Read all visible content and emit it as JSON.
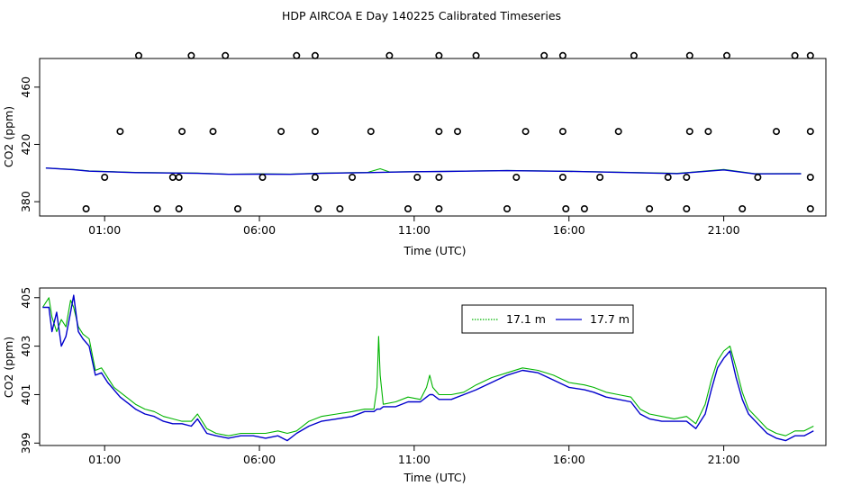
{
  "title": "HDP AIRCOA E  Day 140225  Calibrated Timeseries",
  "colors": {
    "series_a": "#00b400",
    "series_b": "#0000cc",
    "axis": "#000000"
  },
  "chart_data": [
    {
      "type": "line",
      "panel": "top",
      "xlabel": "Time (UTC)",
      "ylabel": "CO2 (ppm)",
      "x_unit": "hours UTC",
      "xlim": [
        -1.1,
        24.3
      ],
      "ylim": [
        370,
        480
      ],
      "xticks": [
        {
          "v": 1,
          "label": "01:00"
        },
        {
          "v": 6,
          "label": "06:00"
        },
        {
          "v": 11,
          "label": "11:00"
        },
        {
          "v": 16,
          "label": "16:00"
        },
        {
          "v": 21,
          "label": "21:00"
        }
      ],
      "yticks": [
        {
          "v": 380,
          "label": "380"
        },
        {
          "v": 420,
          "label": "420"
        },
        {
          "v": 460,
          "label": "460"
        }
      ],
      "series": [
        {
          "color": "#00b400",
          "x": [
            -0.9,
            0,
            0.5,
            2,
            4,
            5,
            6,
            7,
            8,
            9.5,
            9.9,
            10.2,
            11,
            12,
            14,
            16,
            18,
            19.5,
            21,
            22,
            23.5
          ],
          "y": [
            403.5,
            402.5,
            401.5,
            400.5,
            400,
            399.2,
            399.4,
            399.3,
            400,
            400.5,
            403,
            400.8,
            401,
            401.2,
            401.8,
            401.3,
            400.5,
            399.8,
            402.5,
            399.6,
            399.7
          ]
        },
        {
          "color": "#0000cc",
          "x": [
            -0.9,
            0,
            0.5,
            2,
            4,
            5,
            6,
            7,
            8,
            9.5,
            10.2,
            11,
            12,
            14,
            16,
            18,
            19.5,
            21,
            22,
            23.5
          ],
          "y": [
            403.5,
            402.3,
            401.3,
            400.3,
            399.8,
            399.1,
            399.2,
            399.1,
            399.8,
            400.3,
            400.6,
            400.9,
            401.1,
            401.7,
            401.2,
            400.3,
            399.6,
            402.2,
            399.4,
            399.5
          ]
        }
      ],
      "markers": {
        "type": "scatter",
        "symbol": "open-circle",
        "y_levels": [
          375,
          397,
          429,
          482
        ],
        "points": [
          {
            "x": 0.4,
            "y": 375
          },
          {
            "x": 2.7,
            "y": 375
          },
          {
            "x": 3.4,
            "y": 375
          },
          {
            "x": 5.3,
            "y": 375
          },
          {
            "x": 7.9,
            "y": 375
          },
          {
            "x": 8.6,
            "y": 375
          },
          {
            "x": 10.8,
            "y": 375
          },
          {
            "x": 11.8,
            "y": 375
          },
          {
            "x": 14.0,
            "y": 375
          },
          {
            "x": 15.9,
            "y": 375
          },
          {
            "x": 16.5,
            "y": 375
          },
          {
            "x": 18.6,
            "y": 375
          },
          {
            "x": 19.8,
            "y": 375
          },
          {
            "x": 21.6,
            "y": 375
          },
          {
            "x": 23.8,
            "y": 375
          },
          {
            "x": 1.0,
            "y": 397
          },
          {
            "x": 3.2,
            "y": 397
          },
          {
            "x": 3.4,
            "y": 397
          },
          {
            "x": 6.1,
            "y": 397
          },
          {
            "x": 7.8,
            "y": 397
          },
          {
            "x": 9.0,
            "y": 397
          },
          {
            "x": 11.1,
            "y": 397
          },
          {
            "x": 11.8,
            "y": 397
          },
          {
            "x": 14.3,
            "y": 397
          },
          {
            "x": 15.8,
            "y": 397
          },
          {
            "x": 17.0,
            "y": 397
          },
          {
            "x": 19.2,
            "y": 397
          },
          {
            "x": 19.8,
            "y": 397
          },
          {
            "x": 22.1,
            "y": 397
          },
          {
            "x": 23.8,
            "y": 397
          },
          {
            "x": 1.5,
            "y": 429
          },
          {
            "x": 3.5,
            "y": 429
          },
          {
            "x": 4.5,
            "y": 429
          },
          {
            "x": 6.7,
            "y": 429
          },
          {
            "x": 7.8,
            "y": 429
          },
          {
            "x": 9.6,
            "y": 429
          },
          {
            "x": 11.8,
            "y": 429
          },
          {
            "x": 12.4,
            "y": 429
          },
          {
            "x": 14.6,
            "y": 429
          },
          {
            "x": 15.8,
            "y": 429
          },
          {
            "x": 17.6,
            "y": 429
          },
          {
            "x": 19.9,
            "y": 429
          },
          {
            "x": 20.5,
            "y": 429
          },
          {
            "x": 22.7,
            "y": 429
          },
          {
            "x": 23.8,
            "y": 429
          },
          {
            "x": 2.1,
            "y": 482
          },
          {
            "x": 3.8,
            "y": 482
          },
          {
            "x": 4.9,
            "y": 482
          },
          {
            "x": 7.2,
            "y": 482
          },
          {
            "x": 7.8,
            "y": 482
          },
          {
            "x": 10.2,
            "y": 482
          },
          {
            "x": 11.8,
            "y": 482
          },
          {
            "x": 13.0,
            "y": 482
          },
          {
            "x": 15.2,
            "y": 482
          },
          {
            "x": 15.8,
            "y": 482
          },
          {
            "x": 18.1,
            "y": 482
          },
          {
            "x": 19.9,
            "y": 482
          },
          {
            "x": 21.1,
            "y": 482
          },
          {
            "x": 23.3,
            "y": 482
          },
          {
            "x": 23.8,
            "y": 482
          }
        ]
      }
    },
    {
      "type": "line",
      "panel": "bottom",
      "xlabel": "Time (UTC)",
      "ylabel": "CO2 (ppm)",
      "x_unit": "hours UTC",
      "xlim": [
        -1.1,
        24.3
      ],
      "ylim": [
        398.9,
        405.4
      ],
      "legend": "top-center",
      "xticks": [
        {
          "v": 1,
          "label": "01:00"
        },
        {
          "v": 6,
          "label": "06:00"
        },
        {
          "v": 11,
          "label": "11:00"
        },
        {
          "v": 16,
          "label": "16:00"
        },
        {
          "v": 21,
          "label": "21:00"
        }
      ],
      "yticks": [
        {
          "v": 399,
          "label": "399"
        },
        {
          "v": 401,
          "label": "401"
        },
        {
          "v": 403,
          "label": "403"
        },
        {
          "v": 405,
          "label": "405"
        }
      ],
      "series": [
        {
          "name": "17.1 m",
          "color": "#00b400",
          "x": [
            -1.0,
            -0.8,
            -0.7,
            -0.55,
            -0.4,
            -0.25,
            -0.1,
            0.0,
            0.15,
            0.3,
            0.5,
            0.7,
            0.9,
            1.1,
            1.3,
            1.5,
            1.8,
            2.0,
            2.3,
            2.6,
            2.9,
            3.2,
            3.5,
            3.8,
            4.0,
            4.3,
            4.6,
            5.0,
            5.4,
            5.8,
            6.2,
            6.6,
            6.9,
            7.2,
            7.6,
            8.0,
            8.5,
            9.0,
            9.4,
            9.7,
            9.8,
            9.85,
            9.9,
            10.0,
            10.4,
            10.8,
            11.2,
            11.4,
            11.5,
            11.6,
            11.8,
            12.2,
            12.6,
            13.0,
            13.5,
            14.0,
            14.5,
            15.0,
            15.5,
            16.0,
            16.5,
            16.8,
            17.2,
            17.6,
            18.0,
            18.3,
            18.6,
            19.0,
            19.4,
            19.8,
            20.1,
            20.4,
            20.6,
            20.8,
            21.0,
            21.2,
            21.4,
            21.6,
            21.8,
            22.1,
            22.4,
            22.7,
            23.0,
            23.3,
            23.6,
            23.9
          ],
          "y": [
            404.6,
            405.0,
            404.2,
            403.6,
            404.1,
            403.8,
            404.9,
            404.6,
            403.8,
            403.5,
            403.3,
            402.0,
            402.1,
            401.7,
            401.3,
            401.1,
            400.8,
            400.6,
            400.4,
            400.3,
            400.1,
            400.0,
            399.9,
            399.9,
            400.2,
            399.6,
            399.4,
            399.3,
            399.4,
            399.4,
            399.4,
            399.5,
            399.4,
            399.5,
            399.9,
            400.1,
            400.2,
            400.3,
            400.4,
            400.4,
            401.3,
            403.4,
            401.8,
            400.6,
            400.7,
            400.9,
            400.8,
            401.3,
            401.8,
            401.3,
            401.0,
            401.0,
            401.1,
            401.4,
            401.7,
            401.9,
            402.1,
            402.0,
            401.8,
            401.5,
            401.4,
            401.3,
            401.1,
            401.0,
            400.9,
            400.4,
            400.2,
            400.1,
            400.0,
            400.1,
            399.8,
            400.6,
            401.6,
            402.4,
            402.8,
            403.0,
            402.1,
            401.1,
            400.4,
            400.0,
            399.6,
            399.4,
            399.3,
            399.5,
            399.5,
            399.7
          ]
        },
        {
          "name": "17.7 m",
          "color": "#0000cc",
          "x": [
            -1.0,
            -0.8,
            -0.7,
            -0.55,
            -0.4,
            -0.25,
            -0.1,
            0.0,
            0.15,
            0.3,
            0.5,
            0.7,
            0.9,
            1.1,
            1.3,
            1.5,
            1.8,
            2.0,
            2.3,
            2.6,
            2.9,
            3.2,
            3.5,
            3.8,
            4.0,
            4.3,
            4.6,
            5.0,
            5.4,
            5.8,
            6.2,
            6.6,
            6.9,
            7.2,
            7.6,
            8.0,
            8.5,
            9.0,
            9.4,
            9.7,
            9.8,
            9.85,
            9.9,
            10.0,
            10.4,
            10.8,
            11.2,
            11.4,
            11.5,
            11.6,
            11.8,
            12.2,
            12.6,
            13.0,
            13.5,
            14.0,
            14.5,
            15.0,
            15.5,
            16.0,
            16.5,
            16.8,
            17.2,
            17.6,
            18.0,
            18.3,
            18.6,
            19.0,
            19.4,
            19.8,
            20.1,
            20.4,
            20.6,
            20.8,
            21.0,
            21.2,
            21.4,
            21.6,
            21.8,
            22.1,
            22.4,
            22.7,
            23.0,
            23.3,
            23.6,
            23.9
          ],
          "y": [
            404.6,
            404.6,
            403.6,
            404.4,
            403.0,
            403.4,
            404.4,
            405.1,
            403.6,
            403.3,
            403.0,
            401.8,
            401.9,
            401.5,
            401.2,
            400.9,
            400.6,
            400.4,
            400.2,
            400.1,
            399.9,
            399.8,
            399.8,
            399.7,
            400.0,
            399.4,
            399.3,
            399.2,
            399.3,
            399.3,
            399.2,
            399.3,
            399.1,
            399.4,
            399.7,
            399.9,
            400.0,
            400.1,
            400.3,
            400.3,
            400.4,
            400.4,
            400.4,
            400.5,
            400.5,
            400.7,
            400.7,
            400.9,
            401.0,
            401.0,
            400.8,
            400.8,
            401.0,
            401.2,
            401.5,
            401.8,
            402.0,
            401.9,
            401.6,
            401.3,
            401.2,
            401.1,
            400.9,
            400.8,
            400.7,
            400.2,
            400.0,
            399.9,
            399.9,
            399.9,
            399.6,
            400.2,
            401.2,
            402.1,
            402.5,
            402.8,
            401.7,
            400.8,
            400.2,
            399.8,
            399.4,
            399.2,
            399.1,
            399.3,
            399.3,
            399.5
          ]
        }
      ]
    }
  ]
}
